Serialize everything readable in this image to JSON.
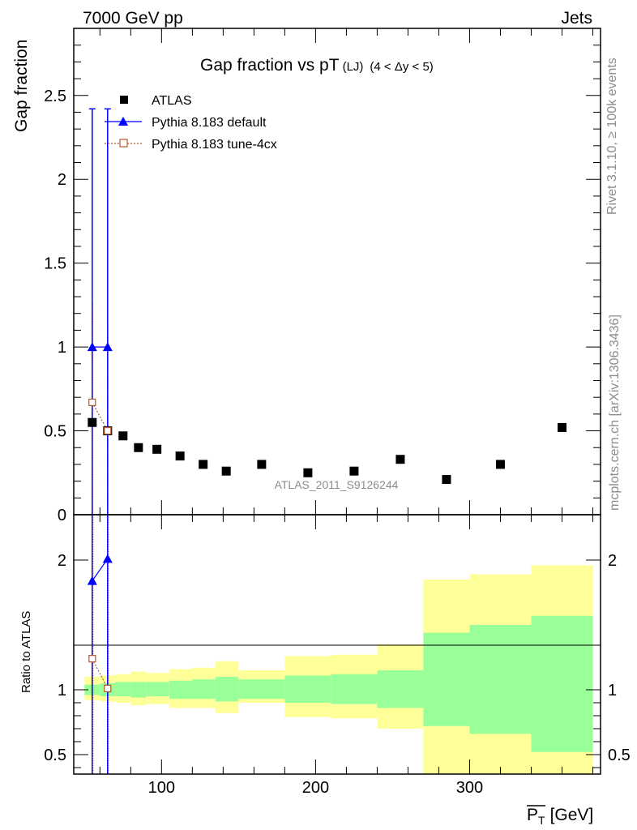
{
  "header": {
    "left": "7000 GeV pp",
    "right": "Jets"
  },
  "chart_data": {
    "type": "scatter",
    "title": "Gap fraction vs pT",
    "title_sub1": "(LJ)",
    "title_sub2": "(4 < Δy < 5)",
    "ylabel_main": "Gap fraction",
    "ylabel_ratio": "Ratio to ATLAS",
    "xlabel": "P",
    "xlabel_sub": "T",
    "xlabel_unit": "[GeV]",
    "watermark": "ATLAS_2011_S9126244",
    "side_label_top": "Rivet 3.1.10, ≥ 100k events",
    "side_label_bottom": "mcplots.cern.ch [arXiv:1306.3436]",
    "xlim": [
      43,
      385
    ],
    "ylim_main": [
      0,
      2.9
    ],
    "ylim_ratio": [
      0.35,
      2.35
    ],
    "x_ticks": [
      100,
      200,
      300
    ],
    "y_ticks_main": [
      0.5,
      1,
      1.5,
      2,
      2.5
    ],
    "y_tick_main_zero": "0",
    "y_ticks_ratio": [
      0.5,
      1,
      2
    ],
    "legend": {
      "atlas": "ATLAS",
      "default": "Pythia 8.183 default",
      "tune": "Pythia 8.183 tune-4cx"
    },
    "atlas": {
      "x": [
        55,
        65,
        75,
        85,
        97,
        112,
        127,
        142,
        165,
        195,
        225,
        255,
        285,
        320,
        360
      ],
      "y": [
        0.55,
        0.5,
        0.47,
        0.4,
        0.39,
        0.35,
        0.3,
        0.26,
        0.3,
        0.25,
        0.26,
        0.33,
        0.21,
        0.3,
        0.52
      ]
    },
    "pythia_default": {
      "x": [
        55,
        65
      ],
      "y": [
        1.0,
        1.0
      ],
      "err_up": [
        1.42,
        1.42
      ],
      "err_down": [
        1.0,
        1.0
      ],
      "ratio": [
        1.84,
        2.01
      ]
    },
    "pythia_tune": {
      "x": [
        55,
        65
      ],
      "y": [
        0.67,
        0.5
      ],
      "err_up": [
        0.6,
        0.6
      ],
      "err_down": [
        0.67,
        0.5
      ],
      "ratio": [
        1.24,
        1.01
      ]
    },
    "ratio_bands": {
      "x_edges": [
        50,
        60,
        70,
        80,
        90,
        105,
        120,
        135,
        150,
        180,
        210,
        240,
        270,
        300,
        340,
        380
      ],
      "yellow_lo": [
        0.92,
        0.91,
        0.9,
        0.88,
        0.89,
        0.86,
        0.86,
        0.82,
        0.9,
        0.79,
        0.78,
        0.7,
        0.35,
        0.35,
        0.35
      ],
      "yellow_hi": [
        1.1,
        1.11,
        1.12,
        1.14,
        1.13,
        1.16,
        1.17,
        1.22,
        1.15,
        1.26,
        1.27,
        1.35,
        1.85,
        1.89,
        1.96
      ],
      "green_lo": [
        0.96,
        0.95,
        0.95,
        0.94,
        0.95,
        0.93,
        0.93,
        0.91,
        0.93,
        0.9,
        0.89,
        0.86,
        0.72,
        0.66,
        0.52
      ],
      "green_hi": [
        1.04,
        1.05,
        1.06,
        1.06,
        1.06,
        1.07,
        1.08,
        1.1,
        1.08,
        1.11,
        1.12,
        1.15,
        1.44,
        1.5,
        1.57
      ]
    },
    "colors": {
      "atlas": "#000000",
      "default": "#0000ff",
      "tune": "#b7592b",
      "band_yellow": "#ffff99",
      "band_green": "#99ff99"
    }
  }
}
